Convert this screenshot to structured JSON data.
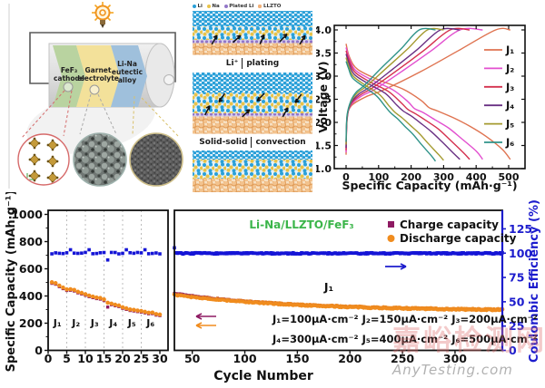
{
  "panel_battery": {
    "cathode_line1": "FeF₃",
    "cathode_line2": "cathode",
    "electrolyte_line1": "Garnet",
    "electrolyte_line2": "electrolyte",
    "alloy_line1": "Li-Na",
    "alloy_line2": "eutectic",
    "alloy_line3": "alloy",
    "colors": {
      "cathode": "#b9d3a0",
      "electrolyte": "#f3e19a",
      "alloy": "#9fc0dc"
    }
  },
  "panel_mechanism": {
    "legend": [
      {
        "label": "Li",
        "color": "#2aa0d8"
      },
      {
        "label": "Na",
        "color": "#e8c34a"
      },
      {
        "label": "Plated Li",
        "color": "#9276c8"
      },
      {
        "label": "LLZTO",
        "color": "#f2b27a"
      }
    ],
    "label1_left": "Li⁺",
    "label1_right": "plating",
    "label2_left": "Solid-solid",
    "label2_right": "convection"
  },
  "watermark": {
    "text": "嘉峪检测网",
    "subtext": "AnyTesting.com"
  },
  "chart_data": [
    {
      "id": "voltage_profiles",
      "type": "line",
      "xlabel": "Specific Capacity (mAh·g⁻¹)",
      "ylabel": "Voltage (V)",
      "xlim": [
        -36,
        550
      ],
      "xticks": [
        0,
        100,
        200,
        300,
        400,
        500
      ],
      "ylim": [
        1.0,
        4.1
      ],
      "yticks": [
        "1.0",
        "1.5",
        "2.0",
        "2.5",
        "3.0",
        "3.5",
        "4.0"
      ],
      "legend_position": "right",
      "series": [
        {
          "name": "J₁",
          "color": "#df7350",
          "charge": [
            [
              0,
              1.3
            ],
            [
              3,
              2.05
            ],
            [
              15,
              2.35
            ],
            [
              60,
              2.55
            ],
            [
              115,
              2.7
            ],
            [
              230,
              3.1
            ],
            [
              345,
              3.55
            ],
            [
              460,
              4.0
            ],
            [
              505,
              4.0
            ]
          ],
          "discharge": [
            [
              0,
              3.7
            ],
            [
              10,
              3.42
            ],
            [
              35,
              3.15
            ],
            [
              100,
              2.92
            ],
            [
              175,
              2.72
            ],
            [
              230,
              2.48
            ],
            [
              255,
              2.32
            ],
            [
              280,
              2.25
            ],
            [
              330,
              2.1
            ],
            [
              380,
              1.92
            ],
            [
              430,
              1.7
            ],
            [
              480,
              1.42
            ],
            [
              505,
              1.2
            ]
          ]
        },
        {
          "name": "J₂",
          "color": "#e24fcf",
          "charge": [
            [
              0,
              1.35
            ],
            [
              3,
              2.05
            ],
            [
              15,
              2.38
            ],
            [
              50,
              2.58
            ],
            [
              90,
              2.72
            ],
            [
              175,
              3.12
            ],
            [
              262,
              3.55
            ],
            [
              350,
              4.0
            ],
            [
              420,
              4.0
            ]
          ],
          "discharge": [
            [
              0,
              3.62
            ],
            [
              10,
              3.38
            ],
            [
              30,
              3.12
            ],
            [
              85,
              2.9
            ],
            [
              145,
              2.7
            ],
            [
              190,
              2.45
            ],
            [
              210,
              2.3
            ],
            [
              235,
              2.22
            ],
            [
              275,
              2.05
            ],
            [
              315,
              1.88
            ],
            [
              355,
              1.65
            ],
            [
              400,
              1.38
            ],
            [
              420,
              1.2
            ]
          ]
        },
        {
          "name": "J₃",
          "color": "#d4304e",
          "charge": [
            [
              0,
              1.4
            ],
            [
              3,
              2.08
            ],
            [
              15,
              2.4
            ],
            [
              45,
              2.6
            ],
            [
              80,
              2.74
            ],
            [
              160,
              3.14
            ],
            [
              240,
              3.56
            ],
            [
              320,
              4.0
            ],
            [
              380,
              4.0
            ]
          ],
          "discharge": [
            [
              0,
              3.55
            ],
            [
              10,
              3.33
            ],
            [
              28,
              3.08
            ],
            [
              75,
              2.87
            ],
            [
              130,
              2.67
            ],
            [
              170,
              2.42
            ],
            [
              190,
              2.28
            ],
            [
              215,
              2.18
            ],
            [
              250,
              2.02
            ],
            [
              285,
              1.85
            ],
            [
              320,
              1.62
            ],
            [
              360,
              1.35
            ],
            [
              380,
              1.2
            ]
          ]
        },
        {
          "name": "J₄",
          "color": "#693083",
          "charge": [
            [
              0,
              1.45
            ],
            [
              3,
              2.1
            ],
            [
              15,
              2.42
            ],
            [
              40,
              2.62
            ],
            [
              72,
              2.76
            ],
            [
              145,
              3.16
            ],
            [
              218,
              3.57
            ],
            [
              290,
              4.0
            ],
            [
              350,
              4.0
            ]
          ],
          "discharge": [
            [
              0,
              3.48
            ],
            [
              9,
              3.28
            ],
            [
              25,
              3.04
            ],
            [
              70,
              2.83
            ],
            [
              120,
              2.63
            ],
            [
              155,
              2.38
            ],
            [
              175,
              2.25
            ],
            [
              200,
              2.14
            ],
            [
              230,
              1.98
            ],
            [
              262,
              1.8
            ],
            [
              295,
              1.58
            ],
            [
              332,
              1.32
            ],
            [
              350,
              1.2
            ]
          ]
        },
        {
          "name": "J₅",
          "color": "#a49a2f",
          "charge": [
            [
              0,
              1.52
            ],
            [
              3,
              2.12
            ],
            [
              15,
              2.45
            ],
            [
              35,
              2.64
            ],
            [
              62,
              2.78
            ],
            [
              125,
              3.18
            ],
            [
              188,
              3.58
            ],
            [
              250,
              4.0
            ],
            [
              300,
              4.0
            ]
          ],
          "discharge": [
            [
              0,
              3.4
            ],
            [
              8,
              3.22
            ],
            [
              22,
              3.0
            ],
            [
              60,
              2.8
            ],
            [
              103,
              2.6
            ],
            [
              133,
              2.35
            ],
            [
              150,
              2.22
            ],
            [
              172,
              2.1
            ],
            [
              197,
              1.94
            ],
            [
              225,
              1.76
            ],
            [
              253,
              1.54
            ],
            [
              285,
              1.3
            ],
            [
              300,
              1.18
            ]
          ]
        },
        {
          "name": "J₆",
          "color": "#2f9389",
          "charge": [
            [
              0,
              1.58
            ],
            [
              3,
              2.15
            ],
            [
              15,
              2.47
            ],
            [
              32,
              2.66
            ],
            [
              56,
              2.8
            ],
            [
              112,
              3.2
            ],
            [
              169,
              3.59
            ],
            [
              225,
              4.0
            ],
            [
              275,
              4.0
            ]
          ],
          "discharge": [
            [
              0,
              3.32
            ],
            [
              8,
              3.16
            ],
            [
              20,
              2.96
            ],
            [
              55,
              2.77
            ],
            [
              94,
              2.57
            ],
            [
              122,
              2.33
            ],
            [
              138,
              2.2
            ],
            [
              158,
              2.08
            ],
            [
              180,
              1.92
            ],
            [
              206,
              1.74
            ],
            [
              232,
              1.52
            ],
            [
              262,
              1.28
            ],
            [
              275,
              1.16
            ]
          ]
        }
      ]
    },
    {
      "id": "cycling_performance",
      "type": "scatter",
      "title": "Li-Na/LLZTO/FeF₃",
      "title_color": "#3bb54a",
      "xlabel": "Cycle Number",
      "ylabel_left": "Specific Capacity (mAh·g⁻¹)",
      "ylabel_right": "Coulombic Efficiency (%)",
      "left_axis": {
        "lim": [
          0,
          1000
        ],
        "ticks": [
          0,
          200,
          400,
          600,
          800,
          1000
        ]
      },
      "right_axis": {
        "lim": [
          0,
          143
        ],
        "ticks": [
          0,
          25,
          50,
          75,
          100,
          125
        ],
        "color": "#1c1ccd"
      },
      "panel1": {
        "xlim": [
          0,
          32
        ],
        "xticks": [
          0,
          5,
          10,
          15,
          20,
          25,
          30
        ],
        "gridlines": [
          5,
          10,
          15,
          20,
          25
        ],
        "segment_labels": [
          "J₁",
          "J₂",
          "J₃",
          "J₄",
          "J₅",
          "J₆"
        ],
        "discharge_segments": [
          [
            1,
            5,
            505,
            448
          ],
          [
            6,
            10,
            452,
            415
          ],
          [
            11,
            15,
            405,
            378
          ],
          [
            16,
            20,
            350,
            320
          ],
          [
            21,
            25,
            310,
            288
          ],
          [
            26,
            30,
            285,
            265
          ]
        ],
        "ce_base": 100,
        "ce_spike": 103.5,
        "ce_dip_cycle": 16,
        "ce_dip": 93
      },
      "panel2": {
        "xlim": [
          33,
          345
        ],
        "xticks": [
          50,
          100,
          150,
          200,
          250,
          300
        ],
        "discharge_start": 410,
        "discharge_end": 299,
        "ce_base": 99.8,
        "annotation": "J₁"
      },
      "legend": [
        {
          "label": "Charge capacity",
          "color": "#8e1a62",
          "marker": "square"
        },
        {
          "label": "Discharge capacity",
          "color": "#f08c1e",
          "marker": "circle"
        }
      ],
      "series_colors": {
        "charge": "#8e1a62",
        "discharge": "#f08c1e",
        "efficiency": "#1414d6"
      },
      "current_density_line1": "J₁=100μA·cm⁻²  J₂=150μA·cm⁻²  J₃=200μA·cm⁻²",
      "current_density_line2": "J₄=300μA·cm⁻²  J₅=400μA·cm⁻²  J₆=500μA·cm⁻²"
    }
  ]
}
